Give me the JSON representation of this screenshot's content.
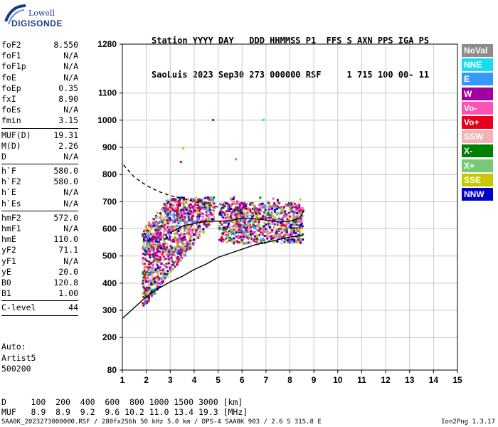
{
  "logo": {
    "top": "Lowell",
    "bottom": "DIGISONDE"
  },
  "header": {
    "row1": "Station YYYY DAY   DDD HHMMSS P1  FFS S AXN PPS IGA PS",
    "row2": "SaoLuis 2023 Sep30 273 000000 RSF     1 715 100 00- 11"
  },
  "params": [
    [
      {
        "label": "foF2",
        "value": "8.550"
      },
      {
        "label": "foF1",
        "value": "N/A"
      },
      {
        "label": "foF1p",
        "value": "N/A"
      },
      {
        "label": "foE",
        "value": "N/A"
      },
      {
        "label": "foEp",
        "value": "0.35"
      },
      {
        "label": "fxI",
        "value": "8.90"
      },
      {
        "label": "foEs",
        "value": "N/A"
      },
      {
        "label": "fmin",
        "value": "3.15"
      }
    ],
    [
      {
        "label": "MUF(D)",
        "value": "19.31"
      },
      {
        "label": "M(D)",
        "value": "2.26"
      },
      {
        "label": "D",
        "value": "N/A"
      }
    ],
    [
      {
        "label": "h`F",
        "value": "580.0"
      },
      {
        "label": "h`F2",
        "value": "580.0"
      },
      {
        "label": "h`E",
        "value": "N/A"
      },
      {
        "label": "h`Es",
        "value": "N/A"
      }
    ],
    [
      {
        "label": "hmF2",
        "value": "572.0"
      },
      {
        "label": "hmF1",
        "value": "N/A"
      },
      {
        "label": "hmE",
        "value": "110.0"
      },
      {
        "label": "yF2",
        "value": "71.1"
      },
      {
        "label": "yF1",
        "value": "N/A"
      },
      {
        "label": "yE",
        "value": "20.0"
      },
      {
        "label": "B0",
        "value": "120.8"
      },
      {
        "label": "B1",
        "value": "1.00"
      }
    ],
    [
      {
        "label": "C-level",
        "value": "44"
      }
    ]
  ],
  "auto": {
    "line1": "Auto:",
    "line2": "Artist5",
    "line3": "500200"
  },
  "muf_table": {
    "d_row": "D     100  200  400  600  800 1000 1500 3000 [km]",
    "muf_row": "MUF   8.9  8.9  9.2  9.6 10.2 11.0 13.4 19.3 [MHz]"
  },
  "footer": {
    "left": "SAA0K_2023273000000.RSF / 280fx256h 50 kHz 5.0 km / DPS-4 SAA0K 903 / 2.6 S 315.8 E",
    "right": "Ion2Png 1.3.17"
  },
  "legend": [
    {
      "label": "NoVal",
      "color": "#8c8c8c"
    },
    {
      "label": "NNE",
      "color": "#19dcf0"
    },
    {
      "label": "E",
      "color": "#3399ff"
    },
    {
      "label": "W",
      "color": "#a000a0"
    },
    {
      "label": "Vo-",
      "color": "#ff50b4"
    },
    {
      "label": "Vo+",
      "color": "#e6001e"
    },
    {
      "label": "SSW",
      "color": "#f0b4b4"
    },
    {
      "label": "X-",
      "color": "#008000"
    },
    {
      "label": "X+",
      "color": "#78c878"
    },
    {
      "label": "SSE",
      "color": "#c8c800"
    },
    {
      "label": "NNW",
      "color": "#0000c8"
    }
  ],
  "chart_data": {
    "type": "scatter",
    "xlim": [
      1,
      15
    ],
    "ylim": [
      80,
      1280
    ],
    "x_ticks": [
      1,
      2,
      3,
      4,
      5,
      6,
      7,
      8,
      9,
      10,
      11,
      12,
      13,
      14,
      15
    ],
    "y_ticks": [
      80,
      200,
      300,
      400,
      500,
      600,
      700,
      800,
      900,
      1000,
      1100,
      1280
    ],
    "grid": true,
    "series": [
      {
        "name": "profile",
        "style": "solid",
        "x": [
          1.0,
          1.5,
          2.0,
          2.5,
          3.0,
          3.5,
          4.0,
          4.5,
          5.0,
          5.5,
          6.0,
          6.5,
          7.0,
          7.5,
          8.0,
          8.55
        ],
        "y": [
          270,
          310,
          350,
          380,
          405,
          425,
          450,
          470,
          495,
          510,
          525,
          540,
          550,
          560,
          570,
          575
        ]
      },
      {
        "name": "trace",
        "style": "solid",
        "x": [
          3.0,
          3.5,
          4.0,
          4.5,
          5.0,
          5.5,
          6.0,
          6.5,
          7.0,
          7.5,
          8.0,
          8.4,
          8.6
        ],
        "y": [
          585,
          610,
          620,
          628,
          628,
          630,
          640,
          638,
          632,
          625,
          628,
          640,
          670
        ]
      },
      {
        "name": "extrapolation",
        "style": "dashed",
        "x": [
          1.05,
          1.5,
          2.0,
          2.5,
          3.0,
          3.5,
          4.0,
          4.5,
          5.0,
          5.5,
          6.0
        ],
        "y": [
          835,
          790,
          760,
          738,
          722,
          712,
          700,
          690,
          680,
          672,
          665
        ]
      }
    ],
    "clusters": [
      {
        "x": [
          1.8,
          4.8
        ],
        "y": [
          360,
          700
        ],
        "note": "low-frequency F trace band"
      },
      {
        "x": [
          5.0,
          8.5
        ],
        "y": [
          540,
          720
        ],
        "note": "upper F trace band"
      }
    ]
  }
}
